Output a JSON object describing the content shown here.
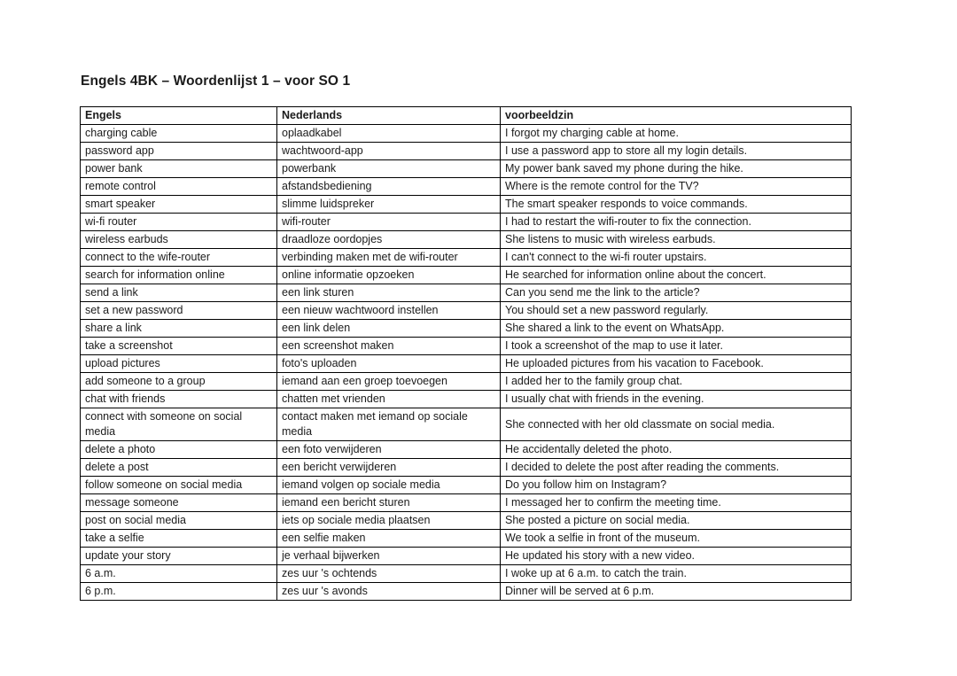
{
  "title": "Engels 4BK – Woordenlijst 1 – voor SO 1",
  "table": {
    "headers": [
      "Engels",
      "Nederlands",
      "voorbeeldzin"
    ],
    "rows": [
      [
        "charging cable",
        "oplaadkabel",
        "I forgot my charging cable at home."
      ],
      [
        "password app",
        "wachtwoord-app",
        "I use a password app to store all my login details."
      ],
      [
        "power bank",
        "powerbank",
        "My power bank saved my phone during the hike."
      ],
      [
        "remote control",
        "afstandsbediening",
        "Where is the remote control for the TV?"
      ],
      [
        "smart speaker",
        "slimme luidspreker",
        "The smart speaker responds to voice commands."
      ],
      [
        "wi-fi router",
        "wifi-router",
        "I had to restart the wifi-router to fix the connection."
      ],
      [
        "wireless earbuds",
        "draadloze oordopjes",
        "She listens to music with wireless earbuds."
      ],
      [
        "connect to the wife-router",
        "verbinding maken met de wifi-router",
        "I can't connect to the wi-fi router upstairs."
      ],
      [
        "search for information online",
        "online informatie opzoeken",
        "He searched for information online about the concert."
      ],
      [
        "send a link",
        "een link sturen",
        "Can you send me the link to the article?"
      ],
      [
        "set a new password",
        "een nieuw wachtwoord instellen",
        "You should set a new password regularly."
      ],
      [
        "share a link",
        "een link delen",
        "She shared a link to the event on WhatsApp."
      ],
      [
        "take a screenshot",
        "een screenshot maken",
        "I took a screenshot of the map to use it later."
      ],
      [
        "upload pictures",
        "foto's uploaden",
        "He uploaded pictures from his vacation to Facebook."
      ],
      [
        "add someone to a group",
        "iemand aan een groep toevoegen",
        "I added her to the family group chat."
      ],
      [
        "chat with friends",
        "chatten met vrienden",
        "I usually chat with friends in the evening."
      ],
      [
        "connect with someone on social media",
        "contact maken met iemand op sociale media",
        "She connected with her old classmate on social media."
      ],
      [
        "delete a photo",
        "een foto verwijderen",
        "He accidentally deleted the photo."
      ],
      [
        "delete a post",
        "een bericht verwijderen",
        "I decided to delete the post after reading the comments."
      ],
      [
        "follow someone on social media",
        "iemand volgen op sociale media",
        "Do you follow him on Instagram?"
      ],
      [
        "message someone",
        "iemand een bericht sturen",
        "I messaged her to confirm the meeting time."
      ],
      [
        "post on social media",
        "iets op sociale media plaatsen",
        "She posted a picture on social media."
      ],
      [
        "take a selfie",
        "een selfie maken",
        "We took a selfie in front of the museum."
      ],
      [
        "update your story",
        "je verhaal bijwerken",
        "He updated his story with a new video."
      ],
      [
        "6 a.m.",
        "zes uur 's ochtends",
        "I woke up at 6 a.m. to catch the train."
      ],
      [
        "6 p.m.",
        "zes uur 's avonds",
        "Dinner will be served at 6 p.m."
      ]
    ]
  }
}
